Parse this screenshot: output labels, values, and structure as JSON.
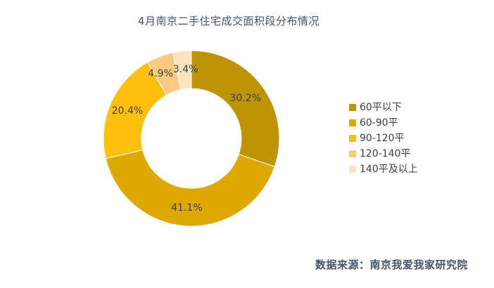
{
  "title": "4月南京二手住宅成交面积段分布情况",
  "source": "数据来源：南京我爱我家研究院",
  "chart_data": {
    "type": "pie",
    "subtype": "donut",
    "title": "4月南京二手住宅成交面积段分布情况",
    "categories": [
      "60平以下",
      "60-90平",
      "90-120平",
      "120-140平",
      "140平及以上"
    ],
    "values": [
      30.2,
      41.1,
      20.4,
      4.9,
      3.4
    ],
    "labels": [
      "30.2%",
      "41.1%",
      "20.4%",
      "4.9%",
      "3.4%"
    ],
    "colors": [
      "#BE9405",
      "#DDA802",
      "#FEC00D",
      "#F9CA80",
      "#FAE4BE"
    ],
    "start_angle_deg": 0,
    "direction": "clockwise",
    "inner_radius_ratio": 0.568,
    "slice_separator_color": "#FFFFFF",
    "legend_position": "right",
    "label_color": "#404040",
    "title_color": "#44546A",
    "source_color": "#44546A"
  }
}
